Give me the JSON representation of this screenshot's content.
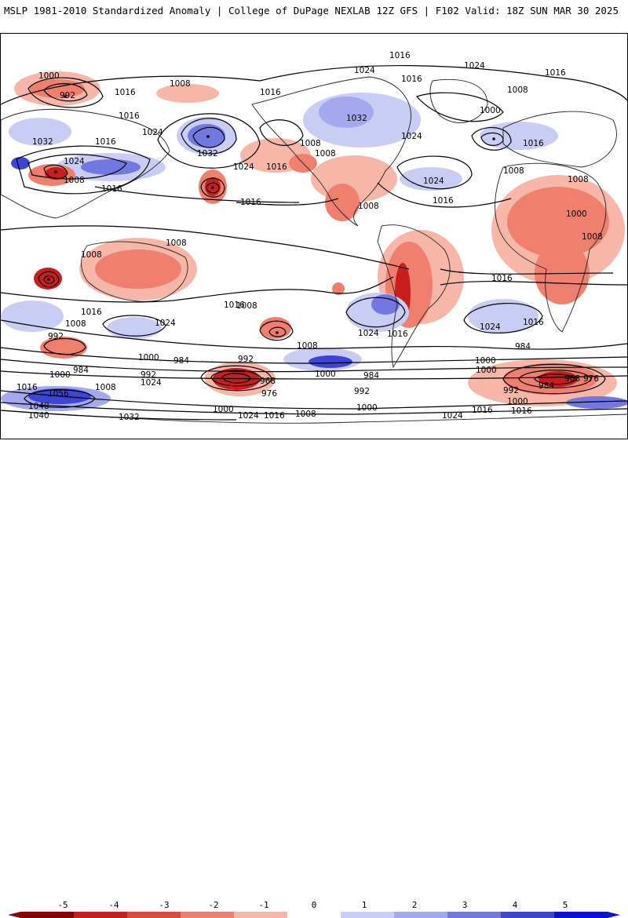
{
  "header": {
    "left_title": "MSLP 1981-2010 Standardized Anomaly | College of DuPage NEXLAB",
    "right_title": "12Z GFS | F102 Valid: 18Z SUN MAR 30 2025"
  },
  "legend": {
    "ticks": [
      "-5",
      "-4",
      "-3",
      "-2",
      "-1",
      "0",
      "1",
      "2",
      "3",
      "4",
      "5"
    ],
    "colors": [
      "#8b0000",
      "#c81e1e",
      "#e0473d",
      "#ef7f6f",
      "#f7b7a8",
      "#ffffff",
      "#c9cdf3",
      "#a3a9ec",
      "#7278e0",
      "#3c45d6",
      "#0b14c8"
    ]
  },
  "map": {
    "isobar_labels": [
      "1000",
      "992",
      "1008",
      "1016",
      "1016",
      "1032",
      "1016",
      "1024",
      "1008",
      "1016",
      "1032",
      "1024",
      "1016",
      "1024",
      "1016",
      "1008",
      "1032",
      "1024",
      "1016",
      "1016",
      "1024",
      "1016",
      "1008",
      "1008",
      "1024",
      "1016",
      "1000",
      "1008",
      "1008",
      "1008",
      "1016",
      "1008",
      "1008",
      "1000",
      "1016",
      "1024",
      "1008",
      "1016",
      "1016",
      "1024",
      "1016",
      "1008",
      "1024",
      "1016",
      "1008",
      "1000",
      "992",
      "984",
      "1000",
      "1008",
      "984",
      "992",
      "1000",
      "1016",
      "1056",
      "1048",
      "1040",
      "1008",
      "1024",
      "1032",
      "992",
      "1000",
      "984",
      "992",
      "968",
      "976",
      "984",
      "1000",
      "1024",
      "1016",
      "1008",
      "1000",
      "992",
      "984",
      "968",
      "976",
      "1000",
      "1016",
      "1024",
      "1000",
      "1016",
      "1016",
      "1024"
    ],
    "anomaly_colors": {
      "strong_negative": "#c81e1e",
      "negative": "#ef7f6f",
      "weak_negative": "#f7b7a8",
      "weak_positive": "#c9cdf3",
      "positive": "#7278e0",
      "strong_positive": "#3c45d6"
    }
  }
}
